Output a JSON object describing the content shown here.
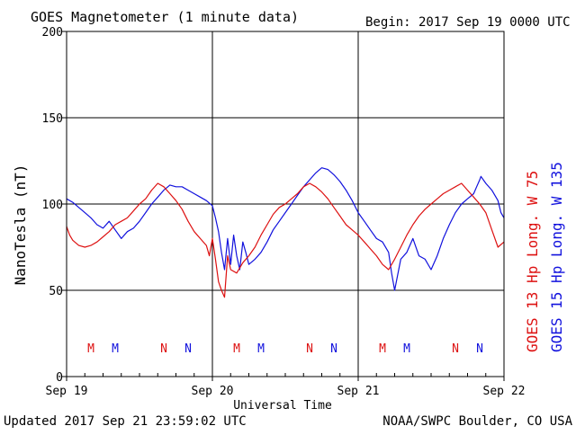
{
  "header": {
    "title": "GOES Magnetometer (1 minute data)",
    "begin": "Begin:  2017 Sep 19 0000 UTC"
  },
  "footer": {
    "updated": "Updated 2017 Sep 21 23:59:02 UTC",
    "credit": "NOAA/SWPC Boulder, CO USA"
  },
  "colors": {
    "goes13": "#dd1111",
    "goes15": "#1111dd",
    "axis": "#000000"
  },
  "chart_data": {
    "type": "line",
    "xlabel": "Universal Time",
    "ylabel": "NanoTesla (nT)",
    "ylim": [
      0,
      200
    ],
    "y_ticks": [
      0,
      50,
      100,
      150,
      200
    ],
    "xlim": [
      0,
      72
    ],
    "x_unit": "hours since 2017 Sep 19 0000 UTC",
    "x_ticks": [
      {
        "value": 0,
        "label": "Sep 19"
      },
      {
        "value": 24,
        "label": "Sep 20"
      },
      {
        "value": 48,
        "label": "Sep 21"
      },
      {
        "value": 72,
        "label": "Sep 22"
      }
    ],
    "grid": true,
    "markers": [
      {
        "t": 4,
        "text": "M",
        "series": "GOES 13"
      },
      {
        "t": 8,
        "text": "M",
        "series": "GOES 15"
      },
      {
        "t": 16,
        "text": "N",
        "series": "GOES 13"
      },
      {
        "t": 20,
        "text": "N",
        "series": "GOES 15"
      },
      {
        "t": 28,
        "text": "M",
        "series": "GOES 13"
      },
      {
        "t": 32,
        "text": "M",
        "series": "GOES 15"
      },
      {
        "t": 40,
        "text": "N",
        "series": "GOES 13"
      },
      {
        "t": 44,
        "text": "N",
        "series": "GOES 15"
      },
      {
        "t": 52,
        "text": "M",
        "series": "GOES 13"
      },
      {
        "t": 56,
        "text": "M",
        "series": "GOES 15"
      },
      {
        "t": 64,
        "text": "N",
        "series": "GOES 13"
      },
      {
        "t": 68,
        "text": "N",
        "series": "GOES 15"
      }
    ],
    "series": [
      {
        "name": "GOES 15",
        "legend": "GOES 15 Hp  Long. W 135",
        "x": [
          0,
          1,
          2,
          3,
          4,
          5,
          6,
          7,
          8,
          9,
          10,
          11,
          12,
          13,
          14,
          15,
          16,
          17,
          18,
          19,
          20,
          21,
          22,
          23,
          24,
          24.5,
          25,
          25.5,
          26,
          26.5,
          27,
          27.5,
          28,
          28.5,
          29,
          29.5,
          30,
          31,
          32,
          33,
          34,
          35,
          36,
          37,
          38,
          39,
          40,
          41,
          42,
          43,
          44,
          45,
          46,
          47,
          48,
          49,
          50,
          51,
          52,
          53,
          53.5,
          54,
          55,
          56,
          57,
          58,
          59,
          60,
          61,
          62,
          63,
          64,
          65,
          66,
          67,
          67.5,
          68,
          68.2,
          68.4,
          69,
          70,
          71,
          71.5,
          72
        ],
        "values": [
          103,
          101,
          98,
          95,
          92,
          88,
          86,
          90,
          85,
          80,
          84,
          86,
          90,
          95,
          100,
          104,
          108,
          111,
          110,
          110,
          108,
          106,
          104,
          102,
          99,
          92,
          84,
          72,
          62,
          80,
          65,
          82,
          70,
          62,
          78,
          72,
          65,
          68,
          72,
          78,
          85,
          90,
          95,
          100,
          105,
          110,
          114,
          118,
          121,
          120,
          117,
          113,
          108,
          102,
          95,
          90,
          85,
          80,
          78,
          72,
          60,
          50,
          68,
          72,
          80,
          70,
          68,
          62,
          70,
          80,
          88,
          95,
          100,
          103,
          106,
          110,
          114,
          116,
          115,
          112,
          108,
          102,
          95,
          92
        ]
      },
      {
        "name": "GOES 13",
        "legend": "GOES 13 Hp  Long. W 75",
        "x": [
          0,
          0.5,
          1,
          2,
          3,
          4,
          5,
          6,
          7,
          8,
          9,
          10,
          11,
          12,
          13,
          14,
          15,
          16,
          17,
          18,
          19,
          20,
          21,
          22,
          23,
          23.5,
          24,
          24.5,
          25,
          25.5,
          26,
          26.5,
          27,
          28,
          29,
          30,
          31,
          32,
          33,
          34,
          35,
          36,
          37,
          38,
          39,
          40,
          41,
          42,
          43,
          44,
          45,
          46,
          47,
          48,
          49,
          50,
          51,
          52,
          53,
          54,
          55,
          56,
          57,
          58,
          59,
          60,
          61,
          62,
          63,
          64,
          65,
          66,
          67,
          68,
          69,
          70,
          71,
          72
        ],
        "values": [
          87,
          82,
          79,
          76,
          75,
          76,
          78,
          81,
          84,
          88,
          90,
          92,
          96,
          100,
          103,
          108,
          112,
          110,
          106,
          102,
          97,
          90,
          84,
          80,
          76,
          70,
          80,
          68,
          55,
          50,
          46,
          70,
          62,
          60,
          66,
          70,
          75,
          82,
          88,
          94,
          98,
          100,
          103,
          106,
          110,
          112,
          110,
          107,
          103,
          98,
          93,
          88,
          85,
          82,
          78,
          74,
          70,
          65,
          62,
          68,
          75,
          82,
          88,
          93,
          97,
          100,
          103,
          106,
          108,
          110,
          112,
          108,
          104,
          100,
          95,
          85,
          75,
          78
        ]
      }
    ]
  }
}
